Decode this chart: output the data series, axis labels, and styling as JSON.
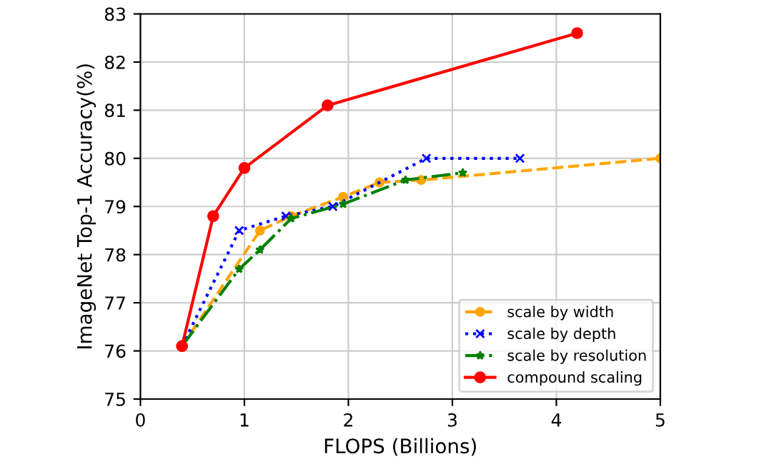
{
  "chart_data": {
    "type": "line",
    "xlabel": "FLOPS (Billions)",
    "ylabel": "ImageNet Top-1 Accuracy(%)",
    "xlim": [
      0,
      5
    ],
    "xticks": [
      0,
      1,
      2,
      3,
      4,
      5
    ],
    "ylim": [
      75,
      83
    ],
    "yticks": [
      75,
      76,
      77,
      78,
      79,
      80,
      81,
      82,
      83
    ],
    "grid": true,
    "legend": "bottom right",
    "series": [
      {
        "name": "scale by width",
        "color": "#ffa500",
        "marker": "circle",
        "line_style": "dashed",
        "x": [
          0.4,
          1.15,
          1.45,
          1.95,
          2.3,
          2.7,
          5.0
        ],
        "values": [
          76.1,
          78.5,
          78.8,
          79.2,
          79.5,
          79.55,
          80.0
        ]
      },
      {
        "name": "scale by depth",
        "color": "#0000ff",
        "marker": "cross",
        "line_style": "dotted",
        "x": [
          0.4,
          0.95,
          1.4,
          1.85,
          2.75,
          3.65
        ],
        "values": [
          76.1,
          78.5,
          78.8,
          79.0,
          80.0,
          80.0
        ]
      },
      {
        "name": "scale by resolution",
        "color": "#008000",
        "marker": "star",
        "line_style": "dashdot",
        "x": [
          0.4,
          0.95,
          1.15,
          1.45,
          1.95,
          2.55,
          3.1
        ],
        "values": [
          76.1,
          77.7,
          78.1,
          78.75,
          79.05,
          79.55,
          79.7
        ]
      },
      {
        "name": "compound scaling",
        "color": "#ff0000",
        "marker": "circle",
        "line_style": "solid",
        "x": [
          0.4,
          0.7,
          1.0,
          1.8,
          4.2
        ],
        "values": [
          76.1,
          78.8,
          79.8,
          81.1,
          82.6
        ]
      }
    ]
  }
}
